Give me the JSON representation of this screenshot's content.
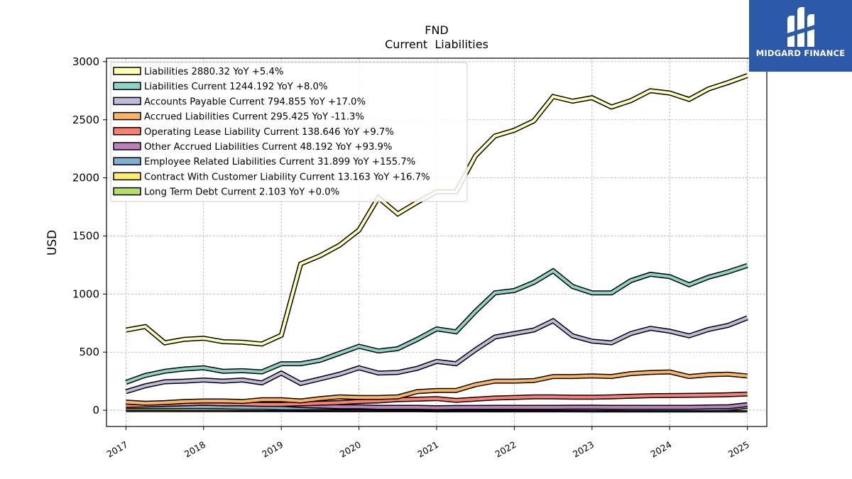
{
  "brand": {
    "name": "MIDGARD FINANCE",
    "bg_color": "#2d5aa8"
  },
  "chart_data": {
    "type": "line",
    "title": "FND",
    "subtitle": "Current  Liabilities",
    "ylabel": "USD",
    "xlabel": "",
    "xlim": [
      2016.75,
      2025.25
    ],
    "ylim": [
      -140,
      3030
    ],
    "x_ticks": [
      "2017",
      "2018",
      "2019",
      "2020",
      "2021",
      "2022",
      "2023",
      "2024",
      "2025"
    ],
    "y_ticks": [
      "0",
      "500",
      "1000",
      "1500",
      "2000",
      "2500",
      "3000"
    ],
    "grid": true,
    "legend_position": "top-left",
    "x": [
      2017.0,
      2017.25,
      2017.5,
      2017.75,
      2018.0,
      2018.25,
      2018.5,
      2018.75,
      2019.0,
      2019.25,
      2019.5,
      2019.75,
      2020.0,
      2020.25,
      2020.5,
      2020.75,
      2021.0,
      2021.25,
      2021.5,
      2021.75,
      2022.0,
      2022.25,
      2022.5,
      2022.75,
      2023.0,
      2023.25,
      2023.5,
      2023.75,
      2024.0,
      2024.25,
      2024.5,
      2024.75,
      2025.0
    ],
    "series": [
      {
        "name": "Liabilities",
        "legend": "Liabilities  2880.32 YoY +5.4%",
        "color": "#ffffb3",
        "values": [
          690,
          720,
          580,
          610,
          620,
          590,
          585,
          570,
          645,
          1260,
          1330,
          1420,
          1550,
          1830,
          1690,
          1790,
          1880,
          1880,
          2190,
          2360,
          2410,
          2490,
          2700,
          2660,
          2690,
          2610,
          2665,
          2750,
          2730,
          2675,
          2765,
          2820,
          2880
        ]
      },
      {
        "name": "Liabilities Current",
        "legend": "Liabilities Current  1244.192 YoY +8.0%",
        "color": "#8dd3c7",
        "values": [
          240,
          300,
          335,
          355,
          365,
          335,
          340,
          330,
          400,
          400,
          430,
          490,
          550,
          510,
          530,
          610,
          700,
          675,
          850,
          1010,
          1030,
          1100,
          1200,
          1065,
          1010,
          1010,
          1115,
          1170,
          1150,
          1080,
          1145,
          1190,
          1245
        ]
      },
      {
        "name": "Accounts Payable Current",
        "legend": "Accounts Payable Current  794.855 YoY +17.0%",
        "color": "#bebada",
        "values": [
          160,
          210,
          245,
          250,
          260,
          250,
          260,
          235,
          320,
          230,
          270,
          310,
          365,
          320,
          325,
          360,
          420,
          400,
          520,
          630,
          660,
          690,
          770,
          640,
          595,
          580,
          660,
          705,
          680,
          640,
          695,
          730,
          795
        ]
      },
      {
        "name": "Accrued Liabilities Current",
        "legend": "Accrued Liabilities Current  295.425 YoY -11.3%",
        "color": "#fdb462",
        "values": [
          70,
          60,
          65,
          75,
          80,
          80,
          75,
          90,
          90,
          80,
          100,
          115,
          110,
          110,
          115,
          160,
          170,
          170,
          220,
          250,
          250,
          255,
          290,
          290,
          295,
          290,
          315,
          325,
          330,
          290,
          305,
          310,
          295
        ]
      },
      {
        "name": "Operating Lease Liability Current",
        "legend": "Operating Lease Liability Current  138.646 YoY +9.7%",
        "color": "#fb8072",
        "values": [
          40,
          45,
          50,
          55,
          60,
          55,
          55,
          50,
          50,
          55,
          60,
          65,
          75,
          80,
          90,
          95,
          100,
          85,
          95,
          105,
          110,
          115,
          115,
          112,
          112,
          115,
          120,
          125,
          126,
          128,
          130,
          133,
          139
        ]
      },
      {
        "name": "Other Accrued Liabilities Current",
        "legend": "Other Accrued Liabilities Current  48.192 YoY +93.9%",
        "color": "#bc80bd",
        "values": [
          50,
          55,
          55,
          60,
          60,
          60,
          58,
          55,
          50,
          40,
          35,
          30,
          30,
          25,
          25,
          25,
          22,
          24,
          24,
          25,
          25,
          25,
          25,
          26,
          26,
          25,
          25,
          25,
          25,
          25,
          28,
          30,
          48
        ]
      },
      {
        "name": "Employee Related Liabilities Current",
        "legend": "Employee Related Liabilities Current  31.899 YoY +155.7%",
        "color": "#80b1d3",
        "values": [
          30,
          30,
          30,
          30,
          30,
          28,
          25,
          25,
          20,
          20,
          22,
          22,
          22,
          20,
          20,
          20,
          18,
          18,
          18,
          18,
          15,
          15,
          15,
          15,
          14,
          14,
          13,
          13,
          12,
          12,
          12,
          14,
          32
        ]
      },
      {
        "name": "Contract With Customer Liability Current",
        "legend": "Contract With Customer Liability Current  13.163 YoY +16.7%",
        "color": "#ffed6f",
        "values": [
          15,
          15,
          15,
          14,
          14,
          14,
          13,
          13,
          12,
          12,
          12,
          12,
          12,
          12,
          12,
          12,
          12,
          12,
          12,
          12,
          12,
          12,
          12,
          12,
          11,
          11,
          11,
          11,
          11,
          11,
          11,
          12,
          13
        ]
      },
      {
        "name": "Long Term Debt Current",
        "legend": "Long Term Debt Current  2.103 YoY +0.0%",
        "color": "#b3de69",
        "values": [
          5,
          5,
          5,
          5,
          5,
          5,
          5,
          5,
          5,
          4,
          4,
          4,
          4,
          4,
          4,
          4,
          3,
          3,
          3,
          3,
          3,
          3,
          3,
          3,
          2,
          2,
          2,
          2,
          2,
          2,
          2,
          2,
          2
        ]
      }
    ]
  }
}
